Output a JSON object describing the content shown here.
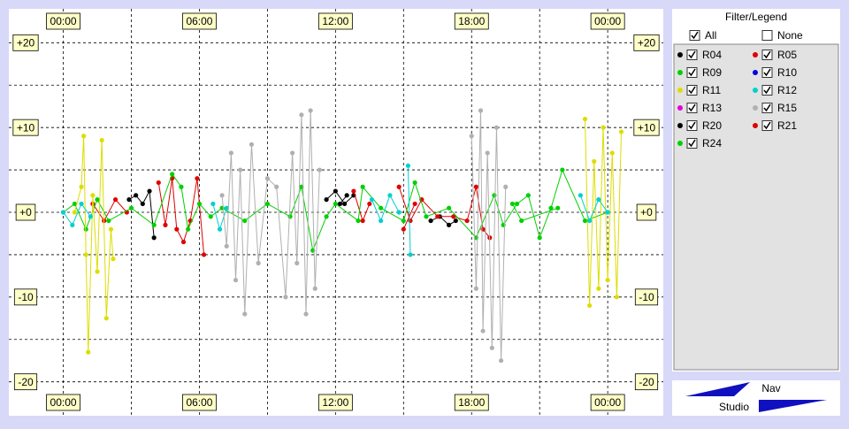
{
  "chart_data": {
    "type": "line",
    "xlim": [
      -2.4,
      26.45
    ],
    "ylim": [
      -24,
      24
    ],
    "xticks": [
      {
        "value": 0,
        "label": "00:00"
      },
      {
        "value": 6,
        "label": "06:00"
      },
      {
        "value": 12,
        "label": "12:00"
      },
      {
        "value": 18,
        "label": "18:00"
      },
      {
        "value": 24,
        "label": "00:00"
      }
    ],
    "yticks": [
      {
        "value": 20,
        "label": "+20"
      },
      {
        "value": 10,
        "label": "+10"
      },
      {
        "value": 0,
        "label": "+0"
      },
      -10,
      -20
    ],
    "xgrid": [
      0,
      3,
      6,
      9,
      12,
      15,
      18,
      21,
      24
    ],
    "ygrid": [
      -20,
      -15,
      -10,
      -5,
      0,
      5,
      10,
      15,
      20
    ],
    "grid": true,
    "series": [
      {
        "name": "R04",
        "color": "#000000",
        "x": [
          2.9,
          3.2,
          3.5,
          3.8,
          4.0,
          4.2,
          11.6,
          12.0,
          12.4,
          12.8,
          13.0,
          16.2,
          16.6,
          17.0,
          17.3
        ],
        "values": [
          1.5,
          2,
          1,
          2.5,
          -3,
          null,
          1.5,
          2.5,
          1,
          2,
          null,
          -1,
          -0.5,
          -1.5,
          -1
        ]
      },
      {
        "name": "R05",
        "color": "#e00000",
        "x": [
          1.3,
          1.8,
          2.3,
          2.8,
          3.2,
          4.2,
          4.5,
          4.8,
          5.0,
          5.3,
          5.6,
          5.9,
          6.2,
          6.5,
          12.8,
          13.2,
          13.5,
          13.8,
          14.8,
          15.3,
          15.8,
          16.5,
          17.2,
          17.8,
          18.2,
          18.5,
          18.8
        ],
        "values": [
          1,
          -1,
          1.5,
          0,
          null,
          3.5,
          -1.5,
          4,
          -2,
          -3.5,
          -1,
          4,
          -5,
          null,
          2.5,
          -1,
          1,
          null,
          3,
          -1,
          1.5,
          -0.5,
          -0.5,
          -1,
          3,
          -2,
          -3
        ]
      },
      {
        "name": "R09",
        "color": "#00d000",
        "x": [
          0,
          0.5,
          1,
          1.5,
          2,
          3,
          4,
          4.8,
          5.2,
          5.5,
          6,
          6.5,
          7,
          8,
          9,
          10,
          10.5,
          11,
          11.6,
          12,
          13,
          13.2,
          14,
          15,
          15.5,
          16,
          17,
          18.2,
          19,
          19.4,
          20,
          20.5,
          21,
          21.5,
          22,
          23,
          24
        ],
        "values": [
          0,
          1,
          -2,
          1.5,
          -1,
          0.5,
          -1.5,
          4.5,
          3,
          -2,
          1,
          -0.5,
          0.5,
          -1,
          1,
          -0.5,
          3,
          -4.5,
          -0.5,
          1,
          -1,
          3,
          0.5,
          -1,
          3.5,
          -0.5,
          0.5,
          -3,
          2,
          -1.5,
          1,
          2,
          -3,
          0.5,
          5,
          -1,
          0
        ]
      },
      {
        "name": "R10",
        "color": "#0000e0",
        "x": [],
        "values": []
      },
      {
        "name": "R11",
        "color": "#dddd00",
        "x": [
          0.5,
          0.8,
          0.9,
          1.0,
          1.1,
          1.3,
          1.5,
          1.7,
          1.9,
          2.1,
          2.2,
          2.4,
          23.0,
          23.2,
          23.4,
          23.6,
          23.8,
          24.0,
          24.2,
          24.4,
          24.6
        ],
        "values": [
          0,
          3,
          9,
          -5,
          -16.5,
          2,
          -7,
          8.5,
          -12.5,
          -2,
          -5.5,
          null,
          11,
          -11,
          6,
          -9,
          10,
          -8,
          7,
          -10,
          9.5
        ]
      },
      {
        "name": "R12",
        "color": "#00d0d0",
        "x": [
          0,
          0.4,
          0.8,
          1.2,
          1.6,
          6.6,
          6.9,
          7.2,
          7.5,
          13.6,
          14.0,
          14.4,
          14.8,
          15.0,
          15.2,
          15.3,
          15.5,
          22.8,
          23.2,
          23.6,
          24.0
        ],
        "values": [
          0,
          -1.5,
          1,
          -0.5,
          null,
          1,
          -2,
          0.5,
          null,
          1.5,
          -1,
          2,
          0,
          null,
          5.5,
          -5,
          null,
          2,
          -1,
          1.5,
          0
        ]
      },
      {
        "name": "R13",
        "color": "#e000e0",
        "x": [],
        "values": []
      },
      {
        "name": "R15",
        "color": "#b0b0b0",
        "x": [
          7.0,
          7.2,
          7.4,
          7.6,
          7.8,
          8.0,
          8.3,
          8.6,
          9.0,
          9.4,
          9.8,
          10.1,
          10.3,
          10.5,
          10.7,
          10.9,
          11.1,
          11.3,
          11.5,
          18.0,
          18.2,
          18.4,
          18.5,
          18.7,
          18.9,
          19.1,
          19.3,
          19.5
        ],
        "values": [
          2,
          -4,
          7,
          -8,
          5,
          -12,
          8,
          -6,
          4,
          3,
          -10,
          7,
          -6,
          11.5,
          -12,
          12,
          -9,
          5,
          null,
          9,
          -9,
          12,
          -14,
          7,
          -16,
          10,
          -17.5,
          3
        ]
      },
      {
        "name": "R20",
        "color": "#000000",
        "x": [
          12.2,
          12.5
        ],
        "values": [
          1,
          2
        ]
      },
      {
        "name": "R21",
        "color": "#e00000",
        "x": [
          15.0,
          15.5
        ],
        "values": [
          -2,
          1
        ]
      },
      {
        "name": "R24",
        "color": "#00d000",
        "x": [
          19.8,
          20.2,
          21.8
        ],
        "values": [
          1,
          -1,
          0.5
        ]
      }
    ]
  },
  "legend_panel": {
    "title": "Filter/Legend",
    "all": {
      "label": "All",
      "checked": true
    },
    "none": {
      "label": "None",
      "checked": false
    }
  },
  "logo": {
    "top": "Nav",
    "bottom": "Studio"
  }
}
